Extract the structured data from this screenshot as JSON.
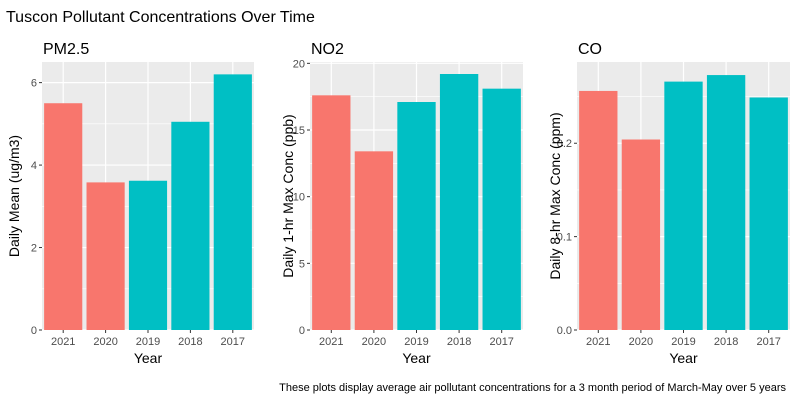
{
  "title": "Tuscon Pollutant Concentrations Over Time",
  "caption": "These plots display average air pollutant concentrations for a 3 month period of March-May over 5 years",
  "colors": {
    "recent": "#F8766D",
    "earlier": "#00BFC4",
    "panel_bg": "#EBEBEB",
    "grid_major": "#FFFFFF"
  },
  "chart_data": [
    {
      "type": "bar",
      "title": "PM2.5",
      "xlabel": "Year",
      "ylabel": "Daily Mean (ug/m3)",
      "categories": [
        "2021",
        "2020",
        "2019",
        "2018",
        "2017"
      ],
      "values": [
        5.5,
        3.58,
        3.62,
        5.05,
        6.2
      ],
      "group": [
        "recent",
        "recent",
        "earlier",
        "earlier",
        "earlier"
      ],
      "ylim": [
        0,
        6.5
      ],
      "yticks": [
        0,
        2,
        4,
        6
      ],
      "ytick_labels": [
        "0",
        "2",
        "4",
        "6"
      ],
      "grid": true
    },
    {
      "type": "bar",
      "title": "NO2",
      "xlabel": "Year",
      "ylabel": "Daily 1-hr Max Conc (ppb)",
      "categories": [
        "2021",
        "2020",
        "2019",
        "2018",
        "2017"
      ],
      "values": [
        17.6,
        13.4,
        17.1,
        19.2,
        18.1
      ],
      "group": [
        "recent",
        "recent",
        "earlier",
        "earlier",
        "earlier"
      ],
      "ylim": [
        0,
        20.1
      ],
      "yticks": [
        0,
        5,
        10,
        15,
        20
      ],
      "ytick_labels": [
        "0",
        "5",
        "10",
        "15",
        "20"
      ],
      "grid": true
    },
    {
      "type": "bar",
      "title": "CO",
      "xlabel": "Year",
      "ylabel": "Daily 8-hr Max Conc (ppm)",
      "categories": [
        "2021",
        "2020",
        "2019",
        "2018",
        "2017"
      ],
      "values": [
        0.256,
        0.204,
        0.266,
        0.273,
        0.249
      ],
      "group": [
        "recent",
        "recent",
        "earlier",
        "earlier",
        "earlier"
      ],
      "ylim": [
        0,
        0.287
      ],
      "yticks": [
        0.0,
        0.1,
        0.2
      ],
      "ytick_labels": [
        "0.0",
        "0.1",
        "0.2"
      ],
      "grid": true
    }
  ]
}
